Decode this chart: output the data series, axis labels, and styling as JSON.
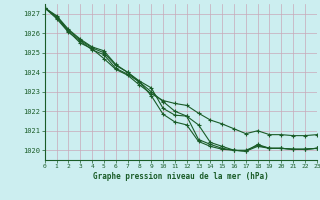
{
  "title": "Graphe pression niveau de la mer (hPa)",
  "bg_color": "#cceef0",
  "grid_color": "#b0d8d8",
  "line_color": "#1a5c28",
  "xlim": [
    0,
    23
  ],
  "ylim": [
    1019.5,
    1027.5
  ],
  "yticks": [
    1020,
    1021,
    1022,
    1023,
    1024,
    1025,
    1026,
    1027
  ],
  "xticks": [
    0,
    1,
    2,
    3,
    4,
    5,
    6,
    7,
    8,
    9,
    10,
    11,
    12,
    13,
    14,
    15,
    16,
    17,
    18,
    19,
    20,
    21,
    22,
    23
  ],
  "series": [
    [
      1027.3,
      1026.9,
      1026.2,
      1025.7,
      1025.3,
      1025.1,
      1024.4,
      1024.0,
      1023.5,
      1023.0,
      1022.5,
      1022.0,
      1021.75,
      1021.3,
      1020.4,
      1020.2,
      1020.0,
      1019.95,
      1020.3,
      1020.1,
      1020.1,
      1020.05,
      1020.05,
      1020.1
    ],
    [
      1027.3,
      1026.85,
      1026.15,
      1025.65,
      1025.25,
      1025.0,
      1024.35,
      1024.0,
      1023.55,
      1023.2,
      1022.15,
      1021.8,
      1021.75,
      1020.55,
      1020.3,
      1020.1,
      1020.0,
      1020.0,
      1020.25,
      1020.1,
      1020.1,
      1020.05,
      1020.05,
      1020.1
    ],
    [
      1027.3,
      1026.8,
      1026.1,
      1025.5,
      1025.2,
      1024.7,
      1024.15,
      1023.85,
      1023.35,
      1022.9,
      1022.55,
      1022.4,
      1022.3,
      1021.9,
      1021.55,
      1021.35,
      1021.1,
      1020.85,
      1021.0,
      1020.8,
      1020.8,
      1020.75,
      1020.75,
      1020.8
    ],
    [
      1027.3,
      1026.75,
      1026.05,
      1025.6,
      1025.15,
      1024.9,
      1024.2,
      1023.9,
      1023.5,
      1022.8,
      1021.85,
      1021.45,
      1021.3,
      1020.45,
      1020.2,
      1020.05,
      1020.0,
      1019.95,
      1020.2,
      1020.1,
      1020.1,
      1020.05,
      1020.05,
      1020.1
    ]
  ]
}
